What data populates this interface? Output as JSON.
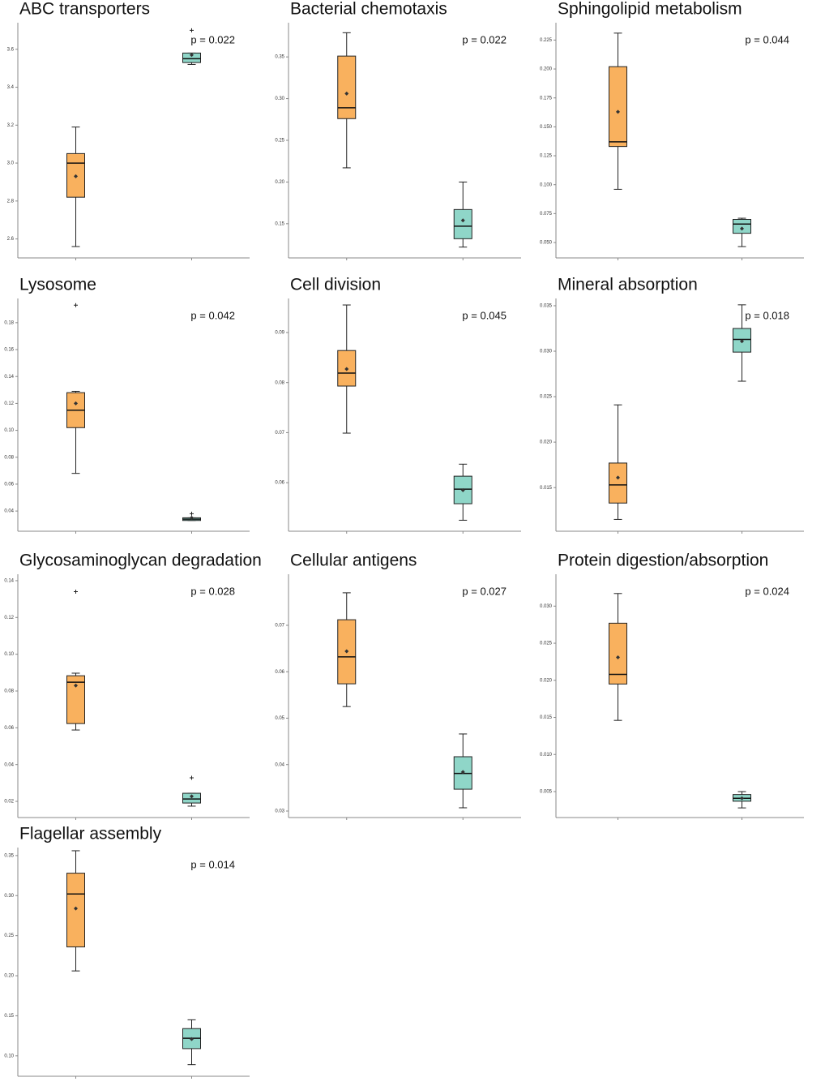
{
  "chart_data": [
    {
      "type": "box",
      "title": "ABC transporters",
      "annotation": "p =  0.022",
      "categories": [
        null,
        null
      ],
      "ylim": [
        2.5,
        3.74
      ],
      "yticks": [
        2.6,
        2.8,
        {
          "value": 3.0,
          "label": "3.0"
        },
        3.2,
        3.4,
        3.6
      ],
      "boxes": [
        {
          "color": "#f9b15e",
          "whislo": 2.56,
          "q1": 2.82,
          "med": 3.0,
          "q3": 3.05,
          "whishi": 3.19,
          "mean": 2.93,
          "fliers": []
        },
        {
          "color": "#8fd6c8",
          "whislo": 3.52,
          "q1": 3.53,
          "med": 3.55,
          "q3": 3.58,
          "whishi": 3.58,
          "mean": 3.57,
          "fliers": [
            3.7
          ]
        }
      ]
    },
    {
      "type": "box",
      "title": "Bacterial chemotaxis",
      "annotation": "p =  0.022",
      "categories": [
        null,
        null
      ],
      "ylim": [
        0.109,
        0.391
      ],
      "yticks": [
        0.15,
        {
          "value": 0.2,
          "label": "0.20"
        },
        0.25,
        {
          "value": 0.3,
          "label": "0.30"
        },
        0.35
      ],
      "boxes": [
        {
          "color": "#f9b15e",
          "whislo": 0.217,
          "q1": 0.276,
          "med": 0.289,
          "q3": 0.351,
          "whishi": 0.379,
          "mean": 0.306,
          "fliers": []
        },
        {
          "color": "#8fd6c8",
          "whislo": 0.122,
          "q1": 0.132,
          "med": 0.147,
          "q3": 0.167,
          "whishi": 0.2,
          "mean": 0.154,
          "fliers": []
        }
      ]
    },
    {
      "type": "box",
      "title": "Sphingolipid metabolism",
      "annotation": "p =  0.044",
      "categories": [
        null,
        null
      ],
      "ylim": [
        0.0367,
        0.24
      ],
      "yticks": [
        {
          "value": 0.05,
          "label": "0.050"
        },
        0.075,
        {
          "value": 0.1,
          "label": "0.100"
        },
        0.125,
        {
          "value": 0.15,
          "label": "0.150"
        },
        0.175,
        {
          "value": 0.2,
          "label": "0.200"
        },
        0.225
      ],
      "boxes": [
        {
          "color": "#f9b15e",
          "whislo": 0.096,
          "q1": 0.133,
          "med": 0.137,
          "q3": 0.202,
          "whishi": 0.231,
          "mean": 0.163,
          "fliers": []
        },
        {
          "color": "#8fd6c8",
          "whislo": 0.0465,
          "q1": 0.058,
          "med": 0.066,
          "q3": 0.07,
          "whishi": 0.071,
          "mean": 0.062,
          "fliers": []
        }
      ]
    },
    {
      "type": "box",
      "title": "Lysosome",
      "annotation": "p =  0.042",
      "categories": [
        null,
        null
      ],
      "ylim": [
        0.025,
        0.198
      ],
      "yticks": [
        0.04,
        0.06,
        0.08,
        {
          "value": 0.1,
          "label": "0.10"
        },
        0.12,
        0.14,
        0.16,
        0.18
      ],
      "boxes": [
        {
          "color": "#f9b15e",
          "whislo": 0.068,
          "q1": 0.102,
          "med": 0.115,
          "q3": 0.128,
          "whishi": 0.129,
          "mean": 0.12,
          "fliers": [
            0.193
          ]
        },
        {
          "color": "#8fd6c8",
          "whislo": 0.033,
          "q1": 0.033,
          "med": 0.034,
          "q3": 0.035,
          "whishi": 0.035,
          "mean": 0.035,
          "fliers": [
            0.038
          ]
        }
      ]
    },
    {
      "type": "box",
      "title": "Cell division",
      "annotation": "p =  0.045",
      "categories": [
        null,
        null
      ],
      "ylim": [
        0.0503,
        0.0968
      ],
      "yticks": [
        0.06,
        0.07,
        0.08,
        0.09
      ],
      "boxes": [
        {
          "color": "#f9b15e",
          "whislo": 0.0699,
          "q1": 0.0793,
          "med": 0.0819,
          "q3": 0.0864,
          "whishi": 0.0955,
          "mean": 0.0827,
          "fliers": []
        },
        {
          "color": "#8fd6c8",
          "whislo": 0.0525,
          "q1": 0.0558,
          "med": 0.0587,
          "q3": 0.0613,
          "whishi": 0.0637,
          "mean": 0.0585,
          "fliers": []
        }
      ]
    },
    {
      "type": "box",
      "title": "Mineral absorption",
      "annotation": "p =  0.018",
      "categories": [
        null,
        null
      ],
      "ylim": [
        0.0102,
        0.0358
      ],
      "yticks": [
        0.015,
        {
          "value": 0.02,
          "label": "0.020"
        },
        0.025,
        {
          "value": 0.03,
          "label": "0.030"
        },
        0.035
      ],
      "boxes": [
        {
          "color": "#f9b15e",
          "whislo": 0.0115,
          "q1": 0.0133,
          "med": 0.0153,
          "q3": 0.0177,
          "whishi": 0.0241,
          "mean": 0.0161,
          "fliers": []
        },
        {
          "color": "#8fd6c8",
          "whislo": 0.0267,
          "q1": 0.0299,
          "med": 0.0313,
          "q3": 0.0325,
          "whishi": 0.0351,
          "mean": 0.0311,
          "fliers": []
        }
      ]
    },
    {
      "type": "box",
      "title": "Glycosaminoglycan degradation",
      "annotation": "p =  0.028",
      "categories": [
        null,
        null
      ],
      "ylim": [
        0.0112,
        0.1435
      ],
      "yticks": [
        0.02,
        0.04,
        0.06,
        0.08,
        {
          "value": 0.1,
          "label": "0.10"
        },
        0.12,
        0.14
      ],
      "boxes": [
        {
          "color": "#f9b15e",
          "whislo": 0.0588,
          "q1": 0.0623,
          "med": 0.0848,
          "q3": 0.0883,
          "whishi": 0.0897,
          "mean": 0.083,
          "fliers": [
            0.134
          ]
        },
        {
          "color": "#8fd6c8",
          "whislo": 0.0174,
          "q1": 0.0191,
          "med": 0.0213,
          "q3": 0.0244,
          "whishi": 0.0244,
          "mean": 0.0227,
          "fliers": [
            0.0328
          ]
        }
      ]
    },
    {
      "type": "box",
      "title": "Cellular antigens",
      "annotation": "p =  0.027",
      "categories": [
        null,
        null
      ],
      "ylim": [
        0.0286,
        0.081
      ],
      "yticks": [
        0.03,
        0.04,
        0.05,
        0.06,
        0.07
      ],
      "boxes": [
        {
          "color": "#f9b15e",
          "whislo": 0.0525,
          "q1": 0.0574,
          "med": 0.0632,
          "q3": 0.0712,
          "whishi": 0.077,
          "mean": 0.0644,
          "fliers": []
        },
        {
          "color": "#8fd6c8",
          "whislo": 0.0307,
          "q1": 0.0347,
          "med": 0.0381,
          "q3": 0.0417,
          "whishi": 0.0466,
          "mean": 0.0384,
          "fliers": []
        }
      ]
    },
    {
      "type": "box",
      "title": "Protein digestion/absorption",
      "annotation": "p =  0.024",
      "categories": [
        null,
        null
      ],
      "ylim": [
        0.0015,
        0.0343
      ],
      "yticks": [
        0.005,
        {
          "value": 0.01,
          "label": "0.010"
        },
        0.015,
        {
          "value": 0.02,
          "label": "0.020"
        },
        0.025,
        {
          "value": 0.03,
          "label": "0.030"
        }
      ],
      "boxes": [
        {
          "color": "#f9b15e",
          "whislo": 0.0146,
          "q1": 0.0195,
          "med": 0.0208,
          "q3": 0.0277,
          "whishi": 0.0317,
          "mean": 0.0231,
          "fliers": []
        },
        {
          "color": "#8fd6c8",
          "whislo": 0.0028,
          "q1": 0.0037,
          "med": 0.0041,
          "q3": 0.0046,
          "whishi": 0.005,
          "mean": 0.0041,
          "fliers": []
        }
      ]
    },
    {
      "type": "box",
      "title": "Flagellar assembly",
      "annotation": "p =  0.014",
      "categories": [
        null,
        null
      ],
      "ylim": [
        0.0745,
        0.36
      ],
      "yticks": [
        {
          "value": 0.1,
          "label": "0.10"
        },
        0.15,
        {
          "value": 0.2,
          "label": "0.20"
        },
        0.25,
        {
          "value": 0.3,
          "label": "0.30"
        },
        0.35
      ],
      "boxes": [
        {
          "color": "#f9b15e",
          "whislo": 0.206,
          "q1": 0.236,
          "med": 0.302,
          "q3": 0.328,
          "whishi": 0.356,
          "mean": 0.284,
          "fliers": []
        },
        {
          "color": "#8fd6c8",
          "whislo": 0.089,
          "q1": 0.109,
          "med": 0.122,
          "q3": 0.134,
          "whishi": 0.145,
          "mean": 0.121,
          "fliers": []
        }
      ]
    }
  ]
}
